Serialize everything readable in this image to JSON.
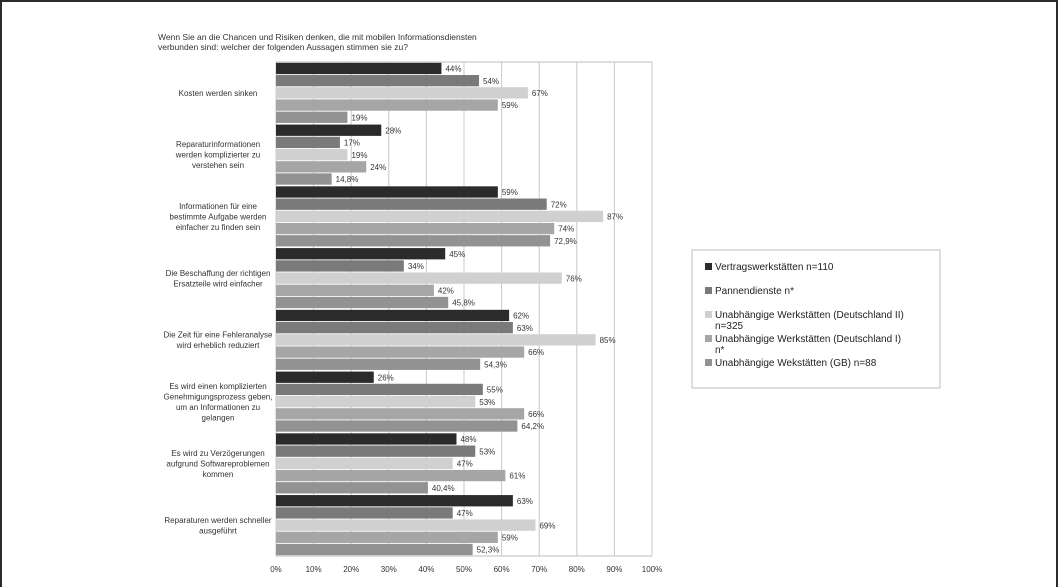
{
  "chart_data": {
    "type": "bar",
    "orientation": "horizontal",
    "title_lines": [
      "Wenn Sie an die Chancen und Risiken denken, die mit mobilen Informationsdiensten",
      "verbunden sind: welcher der folgenden Aussagen stimmen sie zu?"
    ],
    "categories": [
      {
        "lines": [
          "Kosten werden sinken"
        ]
      },
      {
        "lines": [
          "Reparaturinformationen",
          "werden komplizierter zu",
          "verstehen sein"
        ]
      },
      {
        "lines": [
          "Informationen für eine",
          "bestimmte Aufgabe werden",
          "einfacher zu finden sein"
        ]
      },
      {
        "lines": [
          "Die Beschaffung der richtigen",
          "Ersatzteile wird einfacher"
        ]
      },
      {
        "lines": [
          "Die Zeit für eine Fehleranalyse",
          "wird erheblich reduziert"
        ]
      },
      {
        "lines": [
          "Es wird einen komplizierten",
          "Genehmigungsprozess geben,",
          "um an Informationen zu",
          "gelangen"
        ]
      },
      {
        "lines": [
          "Es wird zu Verzögerungen",
          "aufgrund Softwareproblemen",
          "kommen"
        ]
      },
      {
        "lines": [
          "Reparaturen werden schneller",
          "ausgeführt"
        ]
      }
    ],
    "series": [
      {
        "name_lines": [
          "Vertragswerkstätten  n=110"
        ],
        "color": "#2b2b2b",
        "values": [
          44,
          28,
          59,
          45,
          62,
          26,
          48,
          63
        ],
        "labels": [
          "44%",
          "28%",
          "59%",
          "45%",
          "62%",
          "26%",
          "48%",
          "63%"
        ]
      },
      {
        "name_lines": [
          "Pannendienste n*"
        ],
        "color": "#7a7a7a",
        "values": [
          54,
          17,
          72,
          34,
          63,
          55,
          53,
          47
        ],
        "labels": [
          "54%",
          "17%",
          "72%",
          "34%",
          "63%",
          "55%",
          "53%",
          "47%"
        ]
      },
      {
        "name_lines": [
          "Unabhängige Werkstätten (Deutschland II)",
          "n=325"
        ],
        "color": "#d0d0d0",
        "values": [
          67,
          19,
          87,
          76,
          85,
          53,
          47,
          69
        ],
        "labels": [
          "67%",
          "19%",
          "87%",
          "76%",
          "85%",
          "53%",
          "47%",
          "69%"
        ]
      },
      {
        "name_lines": [
          "Unabhängige Werkstätten  (Deutschland I)",
          "n*"
        ],
        "color": "#a6a6a6",
        "values": [
          59,
          24,
          74,
          42,
          66,
          66,
          61,
          59
        ],
        "labels": [
          "59%",
          "24%",
          "74%",
          "42%",
          "66%",
          "66%",
          "61%",
          "59%"
        ]
      },
      {
        "name_lines": [
          "Unabhängige Wekstätten (GB) n=88"
        ],
        "color": "#929292",
        "values": [
          19,
          14.8,
          72.9,
          45.8,
          54.3,
          64.2,
          40.4,
          52.3
        ],
        "labels": [
          "19%",
          "14,8%",
          "72,9%",
          "45,8%",
          "54,3%",
          "64,2%",
          "40,4%",
          "52,3%"
        ]
      }
    ],
    "xlim": [
      0,
      100
    ],
    "xticks": [
      "0%",
      "10%",
      "20%",
      "30%",
      "40%",
      "50%",
      "60%",
      "70%",
      "80%",
      "90%",
      "100%"
    ],
    "grid": true,
    "legend": "right"
  }
}
